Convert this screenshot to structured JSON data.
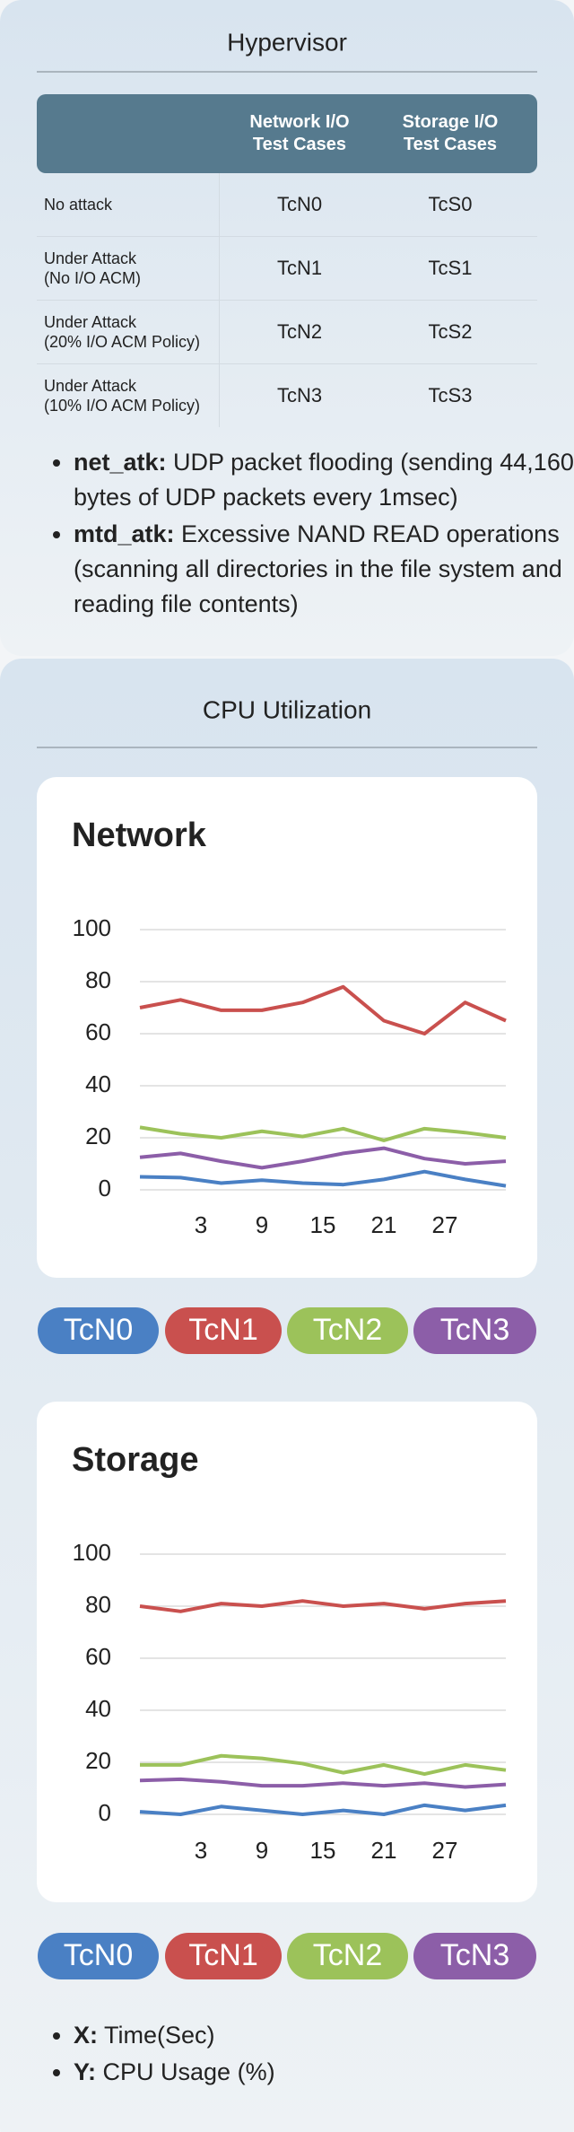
{
  "header": {
    "title": "Hypervisor"
  },
  "table": {
    "columns": [
      "Network I/O\nTest Cases",
      "Storage I/O\nTest Cases"
    ],
    "rows": [
      [
        "No attack",
        "TcN0",
        "TcS0"
      ],
      [
        "Under Attack\n(No I/O ACM)",
        "TcN1",
        "TcS1"
      ],
      [
        "Under Attack\n(20% I/O ACM Policy)",
        "TcN2",
        "TcS2"
      ],
      [
        "Under Attack\n(10% I/O ACM Policy)",
        "TcN3",
        "TcS3"
      ]
    ]
  },
  "notes": [
    {
      "term": "net_atk:",
      "text": "UDP packet flooding (sending 44,160 bytes of UDP packets every 1msec)"
    },
    {
      "term": "mtd_atk:",
      "text": "Excessive NAND READ operations (scanning all directories in the file system and reading file contents)"
    }
  ],
  "section_title": "CPU Utilization",
  "chart_data": [
    {
      "type": "line",
      "title": "Network",
      "x": [
        -3,
        1,
        5,
        9,
        13,
        17,
        21,
        25,
        29,
        33
      ],
      "xlim": [
        -3,
        33
      ],
      "xticks": [
        3,
        9,
        15,
        21,
        27
      ],
      "ylim": [
        0,
        100
      ],
      "yticks": [
        0,
        20,
        40,
        60,
        80,
        100
      ],
      "grid": true,
      "series": [
        {
          "name": "TcN0",
          "color": "#4a80c4",
          "values": [
            5,
            4.7,
            2.6,
            3.7,
            2.6,
            2,
            4,
            7,
            4,
            1.5
          ]
        },
        {
          "name": "TcN1",
          "color": "#c9504e",
          "values": [
            70,
            73,
            69,
            69,
            72,
            78,
            65,
            60,
            72,
            65
          ]
        },
        {
          "name": "TcN2",
          "color": "#9cc25a",
          "values": [
            24,
            21.5,
            20,
            22.5,
            20.5,
            23.5,
            19,
            23.5,
            22,
            20
          ]
        },
        {
          "name": "TcN3",
          "color": "#8c5ea8",
          "values": [
            12.5,
            14,
            11,
            8.5,
            11,
            14,
            16,
            12,
            10,
            11
          ]
        }
      ]
    },
    {
      "type": "line",
      "title": "Storage",
      "x": [
        -3,
        1,
        5,
        9,
        13,
        17,
        21,
        25,
        29,
        33
      ],
      "xlim": [
        -3,
        33
      ],
      "xticks": [
        3,
        9,
        15,
        21,
        27
      ],
      "ylim": [
        0,
        100
      ],
      "yticks": [
        0,
        20,
        40,
        60,
        80,
        100
      ],
      "grid": true,
      "series": [
        {
          "name": "TcN0",
          "color": "#4a80c4",
          "values": [
            1,
            0,
            3,
            1.5,
            0,
            1.5,
            0,
            3.5,
            1.5,
            3.5
          ]
        },
        {
          "name": "TcN1",
          "color": "#c9504e",
          "values": [
            80,
            78,
            81,
            80,
            82,
            80,
            81,
            79,
            81,
            82
          ]
        },
        {
          "name": "TcN2",
          "color": "#9cc25a",
          "values": [
            19,
            19,
            22.5,
            21.5,
            19.5,
            16,
            19,
            15.5,
            19,
            17
          ]
        },
        {
          "name": "TcN3",
          "color": "#8c5ea8",
          "values": [
            13,
            13.5,
            12.5,
            11,
            11,
            12,
            11,
            12,
            10.5,
            11.5
          ]
        }
      ]
    }
  ],
  "axis_notes": [
    {
      "term": "X:",
      "text": "Time(Sec)"
    },
    {
      "term": "Y:",
      "text": "CPU Usage (%)"
    }
  ]
}
